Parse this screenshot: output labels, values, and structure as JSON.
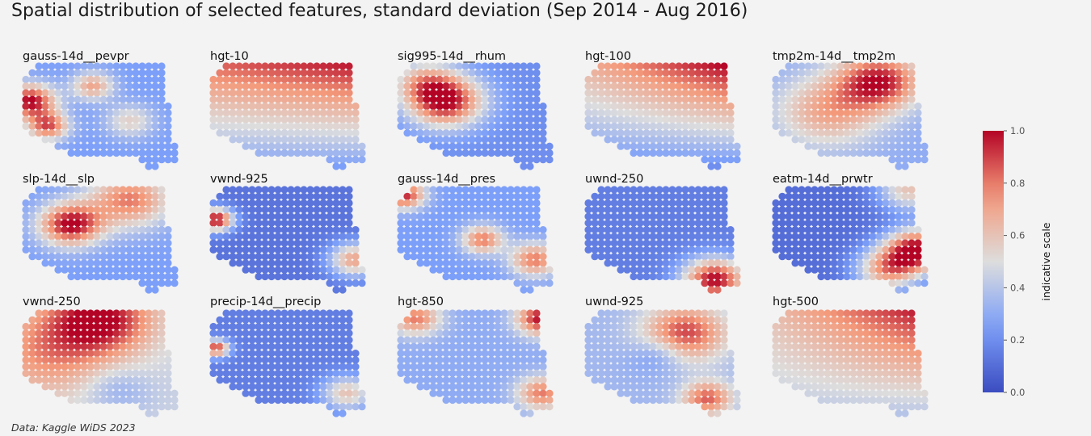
{
  "title": "Spatial distribution of selected features, standard deviation (Sep 2014 - Aug 2016)",
  "footnote": "Data: Kaggle WiDS 2023",
  "chart_data": {
    "type": "heatmap",
    "colormap": "coolwarm",
    "colorbar": {
      "label": "indicative scale",
      "range": [
        0.0,
        1.0
      ],
      "ticks": [
        "0.0",
        "0.2",
        "0.4",
        "0.6",
        "0.8",
        "1.0"
      ]
    },
    "panels": [
      {
        "name": "gauss-14d__pevpr",
        "peaks": [
          [
            0.03,
            0.35,
            1.0,
            0.12
          ],
          [
            0.15,
            0.6,
            0.85,
            0.1
          ],
          [
            0.45,
            0.2,
            0.7,
            0.1
          ],
          [
            0.7,
            0.55,
            0.55,
            0.12
          ]
        ],
        "base": 0.25
      },
      {
        "name": "hgt-10",
        "gradient": {
          "top": 0.9,
          "bottom": 0.25,
          "rightBoost": 0.1
        }
      },
      {
        "name": "sig995-14d__rhum",
        "peaks": [
          [
            0.3,
            0.35,
            1.0,
            0.18
          ],
          [
            0.15,
            0.15,
            0.55,
            0.15
          ]
        ],
        "base": 0.2
      },
      {
        "name": "hgt-100",
        "gradient": {
          "top": 0.85,
          "bottom": 0.2,
          "rightBoost": 0.25
        }
      },
      {
        "name": "tmp2m-14d__tmp2m",
        "peaks": [
          [
            0.7,
            0.15,
            0.95,
            0.2
          ],
          [
            0.35,
            0.45,
            0.7,
            0.25
          ]
        ],
        "base": 0.3
      },
      {
        "name": "slp-14d__slp",
        "peaks": [
          [
            0.3,
            0.35,
            1.0,
            0.15
          ],
          [
            0.7,
            0.1,
            0.8,
            0.2
          ]
        ],
        "base": 0.25
      },
      {
        "name": "vwnd-925",
        "peaks": [
          [
            0.02,
            0.3,
            1.0,
            0.08
          ],
          [
            0.95,
            0.7,
            0.7,
            0.12
          ]
        ],
        "base": 0.12
      },
      {
        "name": "gauss-14d__pres",
        "peaks": [
          [
            0.02,
            0.05,
            0.95,
            0.1
          ],
          [
            0.55,
            0.5,
            0.8,
            0.1
          ],
          [
            0.9,
            0.7,
            0.8,
            0.12
          ]
        ],
        "base": 0.25
      },
      {
        "name": "uwnd-250",
        "peaks": [
          [
            0.85,
            0.9,
            1.0,
            0.15
          ]
        ],
        "base": 0.15
      },
      {
        "name": "eatm-14d__prwtr",
        "peaks": [
          [
            0.95,
            0.6,
            1.0,
            0.15
          ],
          [
            0.75,
            0.8,
            0.7,
            0.15
          ],
          [
            0.9,
            0.0,
            0.6,
            0.15
          ]
        ],
        "base": 0.1
      },
      {
        "name": "vwnd-250",
        "peaks": [
          [
            0.5,
            0.05,
            1.0,
            0.25
          ],
          [
            0.15,
            0.4,
            0.75,
            0.3
          ]
        ],
        "base": 0.45,
        "dip": [
          0.65,
          0.8,
          0.35,
          0.15
        ]
      },
      {
        "name": "precip-14d__precip",
        "peaks": [
          [
            0.02,
            0.35,
            0.9,
            0.06
          ],
          [
            0.9,
            0.8,
            0.6,
            0.12
          ]
        ],
        "base": 0.15
      },
      {
        "name": "hgt-850",
        "peaks": [
          [
            0.95,
            0.05,
            1.0,
            0.12
          ],
          [
            0.1,
            0.05,
            0.8,
            0.12
          ],
          [
            0.95,
            0.8,
            0.8,
            0.12
          ]
        ],
        "base": 0.3
      },
      {
        "name": "uwnd-925",
        "peaks": [
          [
            0.65,
            0.2,
            0.9,
            0.2
          ],
          [
            0.8,
            0.85,
            0.85,
            0.12
          ]
        ],
        "base": 0.35,
        "dip": [
          0.4,
          0.5,
          0.3,
          0.15
        ]
      },
      {
        "name": "hgt-500",
        "gradient": {
          "top": 0.8,
          "bottom": 0.4,
          "rightBoost": 0.25
        }
      }
    ]
  }
}
